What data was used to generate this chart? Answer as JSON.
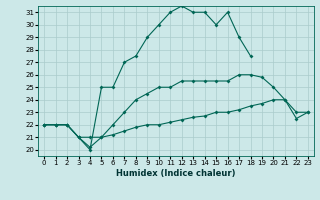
{
  "xlabel": "Humidex (Indice chaleur)",
  "bg_color": "#cce8e8",
  "grid_color": "#aacccc",
  "line_color": "#006655",
  "xlim": [
    -0.5,
    23.5
  ],
  "ylim": [
    19.5,
    31.5
  ],
  "xticks": [
    0,
    1,
    2,
    3,
    4,
    5,
    6,
    7,
    8,
    9,
    10,
    11,
    12,
    13,
    14,
    15,
    16,
    17,
    18,
    19,
    20,
    21,
    22,
    23
  ],
  "yticks": [
    20,
    21,
    22,
    23,
    24,
    25,
    26,
    27,
    28,
    29,
    30,
    31
  ],
  "series1_x": [
    0,
    1,
    2,
    3,
    4,
    5,
    6,
    7,
    8,
    9,
    10,
    11,
    12,
    13,
    14,
    15,
    16,
    17,
    18,
    19,
    20,
    21,
    22,
    23
  ],
  "series1_y": [
    22,
    22,
    22,
    21,
    20,
    25,
    25,
    27,
    27.5,
    29,
    30,
    31,
    31.5,
    31,
    31,
    30,
    31,
    29,
    27.5,
    null,
    null,
    null,
    null,
    null
  ],
  "series2_x": [
    0,
    1,
    2,
    3,
    4,
    5,
    6,
    7,
    8,
    9,
    10,
    11,
    12,
    13,
    14,
    15,
    16,
    17,
    18,
    19,
    20,
    21,
    22,
    23
  ],
  "series2_y": [
    22,
    22,
    22,
    21,
    20.2,
    21,
    22,
    23,
    24,
    24.5,
    25,
    25,
    25.5,
    25.5,
    25.5,
    25.5,
    25.5,
    26,
    26,
    25.8,
    25,
    24,
    23,
    23
  ],
  "series3_x": [
    0,
    1,
    2,
    3,
    4,
    5,
    6,
    7,
    8,
    9,
    10,
    11,
    12,
    13,
    14,
    15,
    16,
    17,
    18,
    19,
    20,
    21,
    22,
    23
  ],
  "series3_y": [
    22,
    22,
    22,
    21,
    21,
    21,
    21.2,
    21.5,
    21.8,
    22,
    22,
    22.2,
    22.4,
    22.6,
    22.7,
    23,
    23,
    23.2,
    23.5,
    23.7,
    24,
    24,
    22.5,
    23
  ],
  "xlabel_fontsize": 6,
  "tick_fontsize": 5
}
